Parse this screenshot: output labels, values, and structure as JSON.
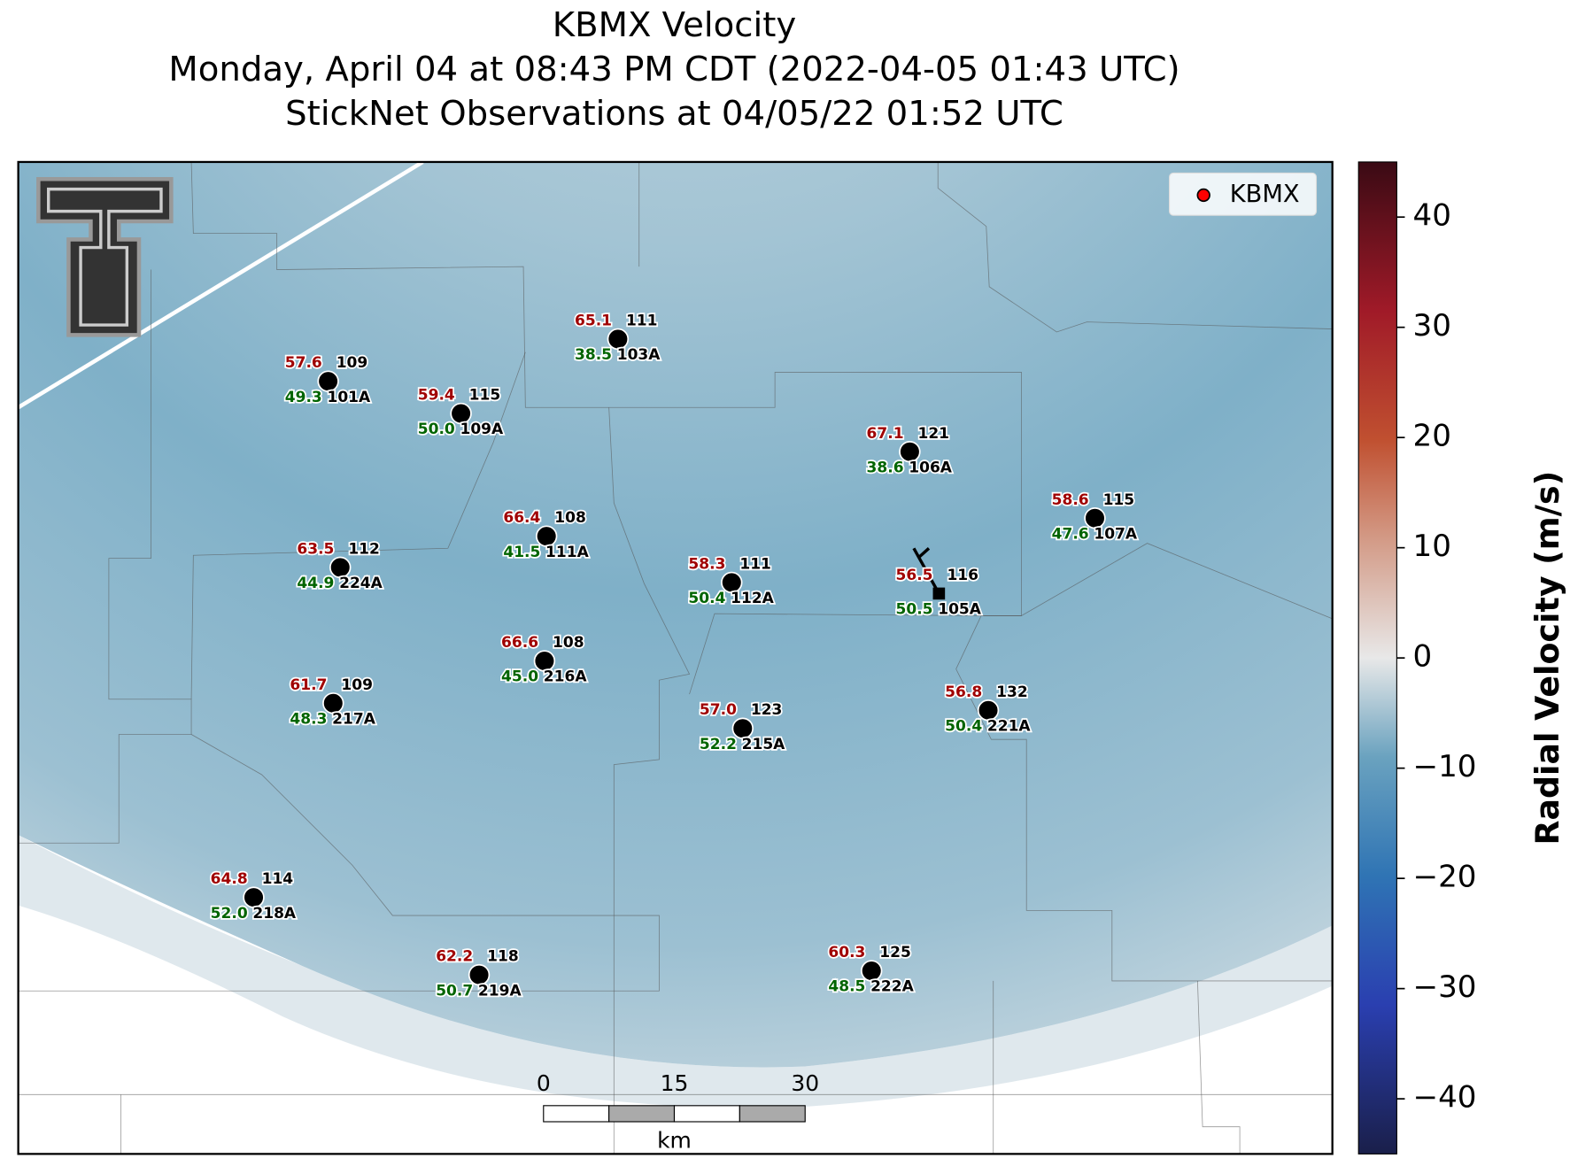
{
  "header": {
    "title": "KBMX Velocity",
    "subtitle": "Monday, April 04 at 08:43 PM CDT (2022-04-05 01:43 UTC)",
    "subtitle2": "StickNet Observations at 04/05/22 01:52 UTC"
  },
  "legend": {
    "label": "KBMX",
    "color": "#ff0000"
  },
  "colorbar": {
    "label": "Radial Velocity (m/s)",
    "clim": [
      -45,
      45
    ],
    "ticks": [
      {
        "value": -40,
        "label": "−40"
      },
      {
        "value": -30,
        "label": "−30"
      },
      {
        "value": -20,
        "label": "−20"
      },
      {
        "value": -10,
        "label": "−10"
      },
      0,
      10,
      20,
      30,
      40
    ]
  },
  "scale_bar": {
    "ticks": [
      "0",
      "15",
      "30"
    ],
    "unit": "km"
  },
  "stations": [
    {
      "temp": "65.1",
      "dir": "111",
      "dew": "38.5",
      "id": "103A"
    },
    {
      "temp": "57.6",
      "dir": "109",
      "dew": "49.3",
      "id": "101A"
    },
    {
      "temp": "59.4",
      "dir": "115",
      "dew": "50.0",
      "id": "109A"
    },
    {
      "temp": "67.1",
      "dir": "121",
      "dew": "38.6",
      "id": "106A"
    },
    {
      "temp": "58.6",
      "dir": "115",
      "dew": "47.6",
      "id": "107A"
    },
    {
      "temp": "66.4",
      "dir": "108",
      "dew": "41.5",
      "id": "111A"
    },
    {
      "temp": "63.5",
      "dir": "112",
      "dew": "44.9",
      "id": "224A"
    },
    {
      "temp": "58.3",
      "dir": "111",
      "dew": "50.4",
      "id": "112A"
    },
    {
      "temp": "56.5",
      "dir": "116",
      "dew": "50.5",
      "id": "105A"
    },
    {
      "temp": "66.6",
      "dir": "108",
      "dew": "45.0",
      "id": "216A"
    },
    {
      "temp": "61.7",
      "dir": "109",
      "dew": "48.3",
      "id": "217A"
    },
    {
      "temp": "56.8",
      "dir": "132",
      "dew": "50.4",
      "id": "221A"
    },
    {
      "temp": "57.0",
      "dir": "123",
      "dew": "52.2",
      "id": "215A"
    },
    {
      "temp": "64.8",
      "dir": "114",
      "dew": "52.0",
      "id": "218A"
    },
    {
      "temp": "62.2",
      "dir": "118",
      "dew": "50.7",
      "id": "219A"
    },
    {
      "temp": "60.3",
      "dir": "125",
      "dew": "48.5",
      "id": "222A"
    }
  ]
}
